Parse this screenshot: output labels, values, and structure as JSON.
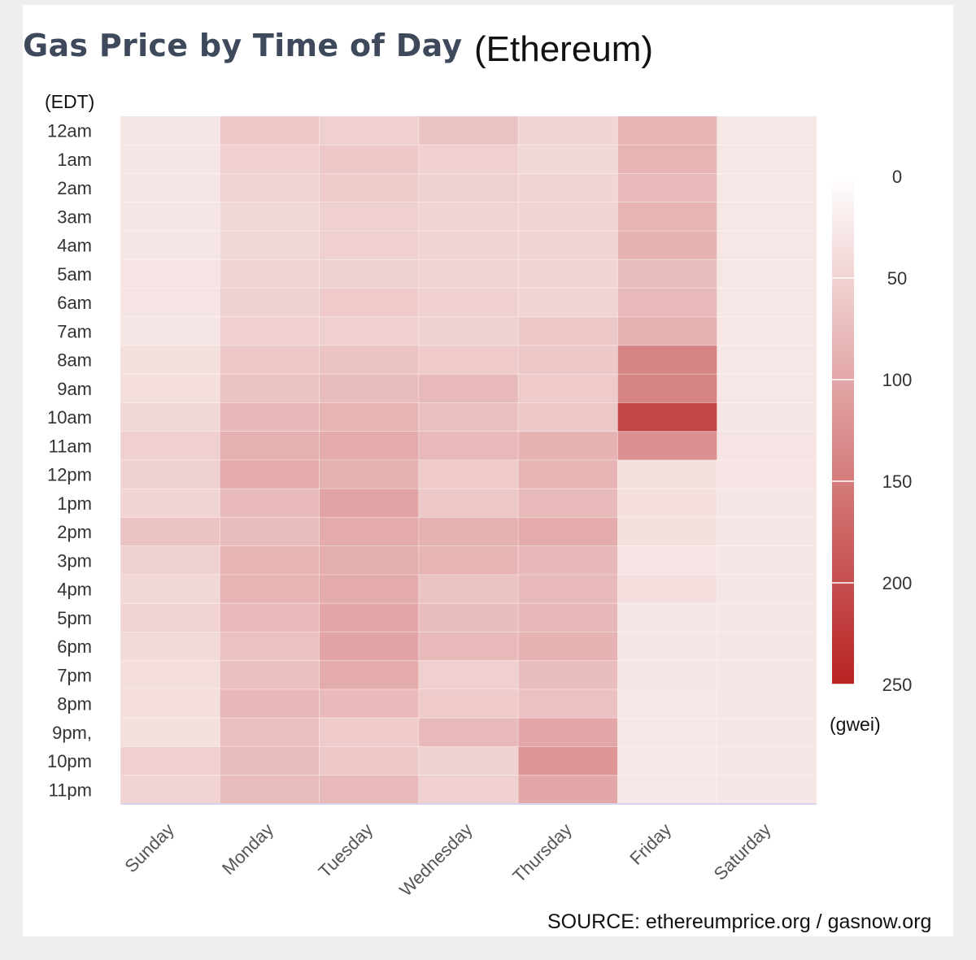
{
  "title": "Gas Price by Time of Day",
  "subtitle": "(Ethereum)",
  "source": "SOURCE: ethereumprice.org / gasnow.org",
  "chart_data": {
    "type": "heatmap",
    "ylabel": "(EDT)",
    "colorbar_label": "(gwei)",
    "colorbar_ticks": [
      "0",
      "50",
      "100",
      "150",
      "200",
      "250"
    ],
    "colorbar_range": [
      0,
      250
    ],
    "color_low": "#ffffff",
    "color_high": "#b82323",
    "x": [
      "Sunday",
      "Monday",
      "Tuesday",
      "Wednesday",
      "Thursday",
      "Friday",
      "Saturday"
    ],
    "y": [
      "12am",
      "1am",
      "2am",
      "3am",
      "4am",
      "5am",
      "6am",
      "7am",
      "8am",
      "9am",
      "10am",
      "11am",
      "12pm",
      "1pm",
      "2pm",
      "3pm",
      "4pm",
      "5pm",
      "6pm",
      "7pm",
      "8pm",
      "9pm,",
      "10pm",
      "11pm"
    ],
    "z": [
      [
        30,
        62,
        55,
        68,
        48,
        85,
        28
      ],
      [
        30,
        55,
        62,
        55,
        45,
        85,
        28
      ],
      [
        30,
        50,
        58,
        52,
        48,
        80,
        28
      ],
      [
        30,
        45,
        55,
        50,
        50,
        85,
        28
      ],
      [
        30,
        45,
        55,
        50,
        48,
        88,
        28
      ],
      [
        32,
        48,
        52,
        50,
        48,
        75,
        28
      ],
      [
        32,
        52,
        60,
        55,
        50,
        80,
        28
      ],
      [
        30,
        55,
        55,
        52,
        62,
        90,
        28
      ],
      [
        35,
        62,
        68,
        60,
        62,
        140,
        28
      ],
      [
        38,
        68,
        75,
        80,
        60,
        140,
        28
      ],
      [
        45,
        82,
        85,
        72,
        62,
        210,
        30
      ],
      [
        55,
        90,
        95,
        80,
        88,
        125,
        32
      ],
      [
        52,
        95,
        90,
        60,
        85,
        35,
        32
      ],
      [
        48,
        78,
        105,
        62,
        80,
        38,
        30
      ],
      [
        68,
        75,
        95,
        90,
        95,
        35,
        30
      ],
      [
        52,
        85,
        92,
        85,
        82,
        32,
        30
      ],
      [
        45,
        85,
        95,
        68,
        80,
        38,
        30
      ],
      [
        50,
        80,
        100,
        75,
        82,
        30,
        30
      ],
      [
        42,
        70,
        105,
        78,
        88,
        30,
        30
      ],
      [
        38,
        72,
        95,
        55,
        75,
        30,
        30
      ],
      [
        38,
        82,
        78,
        60,
        70,
        28,
        30
      ],
      [
        35,
        72,
        60,
        80,
        100,
        28,
        30
      ],
      [
        55,
        75,
        62,
        52,
        120,
        28,
        30
      ],
      [
        50,
        75,
        80,
        55,
        100,
        28,
        30
      ]
    ]
  }
}
